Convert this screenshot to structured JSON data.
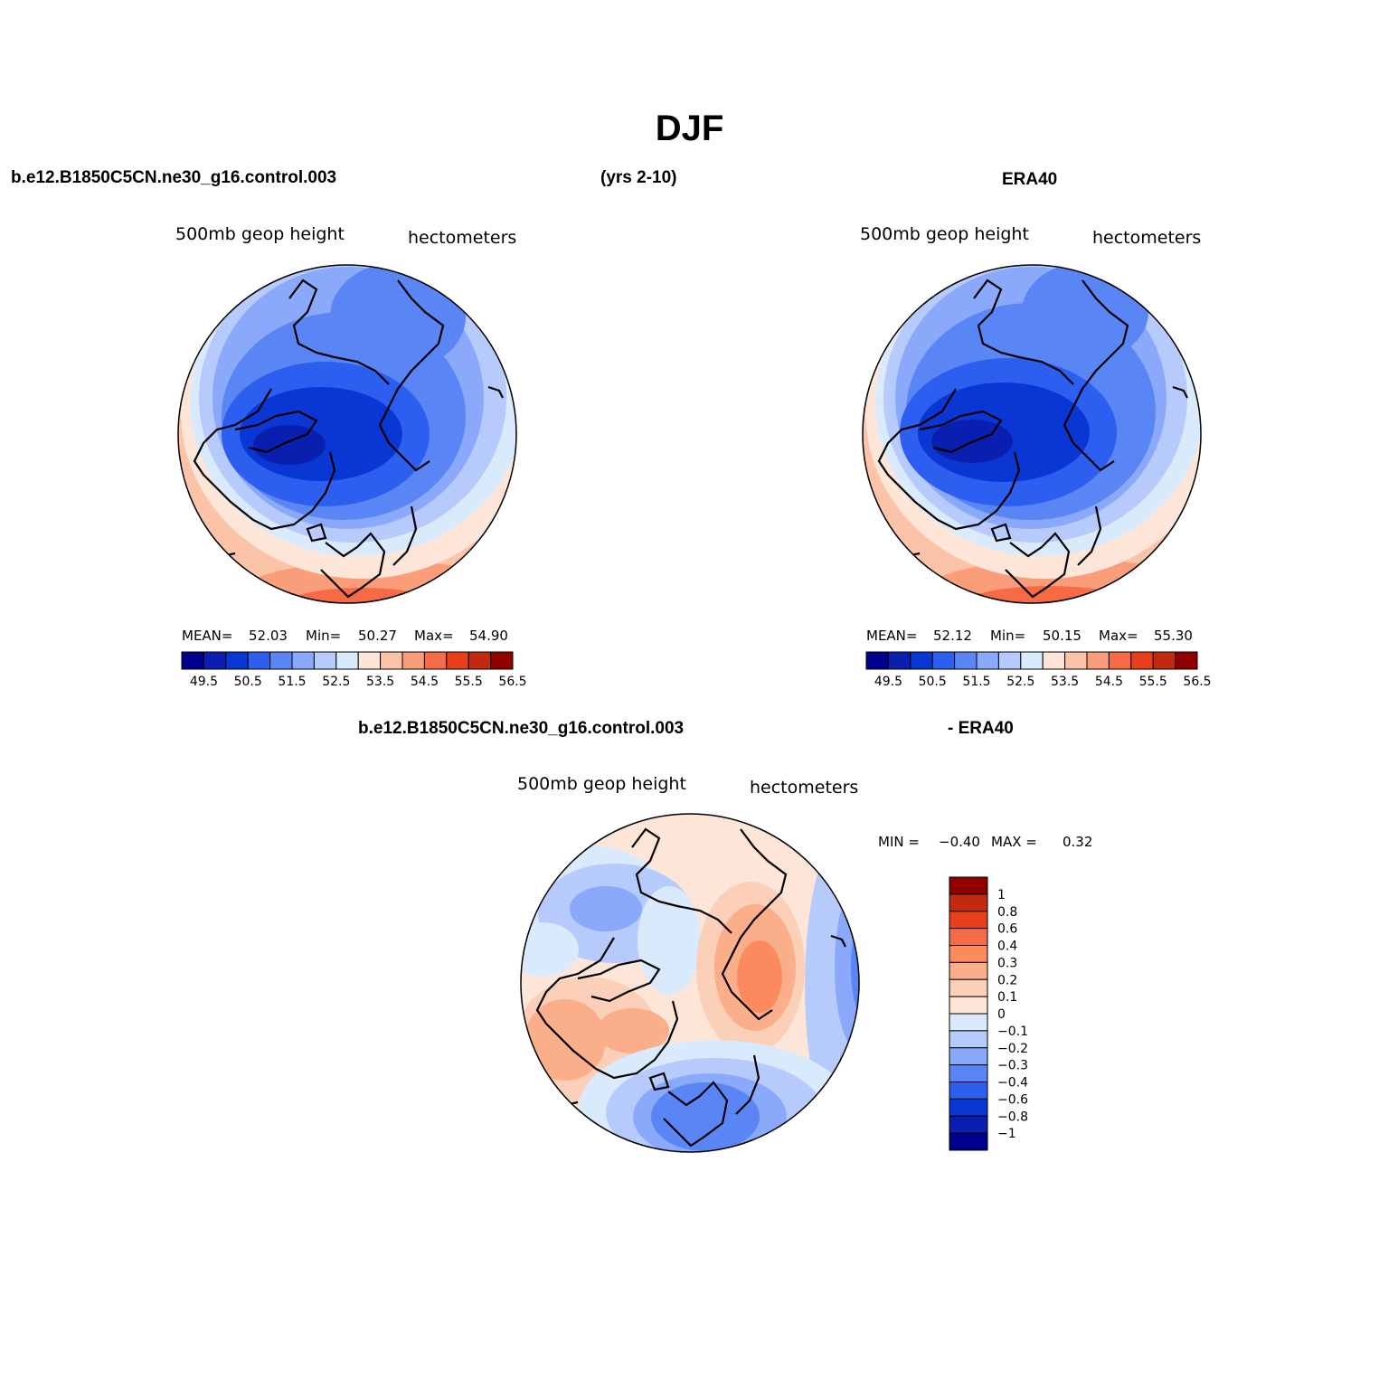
{
  "title": "DJF",
  "header": {
    "case_name": "b.e12.B1850C5CN.ne30_g16.control.003",
    "years": "(yrs 2-10)",
    "obs_name": "ERA40"
  },
  "diff_header": {
    "case_name": "b.e12.B1850C5CN.ne30_g16.control.003",
    "suffix": "- ERA40"
  },
  "panels": [
    {
      "id": "model",
      "field_label": "500mb  geop  height",
      "units": "hectometers",
      "mean_label": "MEAN=",
      "mean": "52.03",
      "min_label": "Min=",
      "min": "50.27",
      "max_label": "Max=",
      "max": "54.90"
    },
    {
      "id": "obs",
      "field_label": "500mb  geop  height",
      "units": "hectometers",
      "mean_label": "MEAN=",
      "mean": "52.12",
      "min_label": "Min=",
      "min": "50.15",
      "max_label": "Max=",
      "max": "55.30"
    },
    {
      "id": "diff",
      "field_label": "500mb  geop  height",
      "units": "hectometers",
      "min_label": "MIN =",
      "min": "−0.40",
      "max_label": "MAX =",
      "max": "0.32"
    }
  ],
  "colorbar_horizontal": {
    "colors": [
      "#00008f",
      "#0a1fb0",
      "#0a37d4",
      "#2c5ff0",
      "#5a86f5",
      "#8ba9fa",
      "#b6cafb",
      "#daeafd",
      "#fde6d8",
      "#fbc4a8",
      "#f99d7a",
      "#f66a45",
      "#e8401c",
      "#c22a0f",
      "#900000"
    ],
    "labels": [
      "49.5",
      "50.5",
      "51.5",
      "52.5",
      "53.5",
      "54.5",
      "55.5",
      "56.5"
    ]
  },
  "colorbar_vertical": {
    "colors": [
      "#900000",
      "#c22a0f",
      "#e8401c",
      "#f66a45",
      "#fb8a5e",
      "#fbae8a",
      "#fcd0b8",
      "#fde6d8",
      "#daeafd",
      "#b6cafb",
      "#8ba9fa",
      "#5a86f5",
      "#2c5ff0",
      "#0a37d4",
      "#0a1fb0",
      "#00008f"
    ],
    "labels": [
      "1",
      "0.8",
      "0.6",
      "0.4",
      "0.3",
      "0.2",
      "0.1",
      "0",
      "−0.1",
      "−0.2",
      "−0.3",
      "−0.4",
      "−0.6",
      "−0.8",
      "−1"
    ]
  }
}
